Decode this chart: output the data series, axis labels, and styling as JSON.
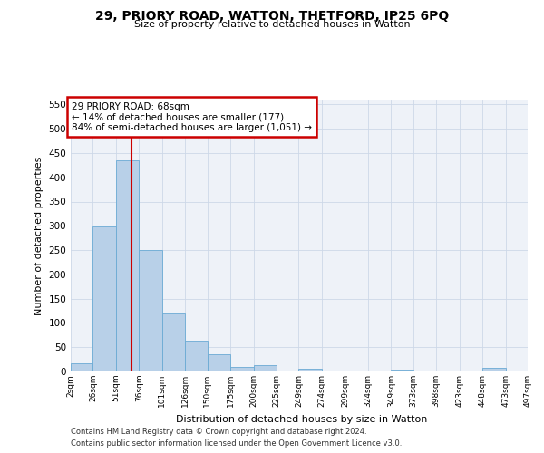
{
  "title_line1": "29, PRIORY ROAD, WATTON, THETFORD, IP25 6PQ",
  "title_line2": "Size of property relative to detached houses in Watton",
  "xlabel": "Distribution of detached houses by size in Watton",
  "ylabel": "Number of detached properties",
  "bar_color": "#b8d0e8",
  "bar_edge_color": "#6aaad4",
  "grid_color": "#cdd8e8",
  "background_color": "#eef2f8",
  "annotation_box_color": "#cc0000",
  "vline_color": "#cc0000",
  "vline_x": 68,
  "annotation_text": "29 PRIORY ROAD: 68sqm\n← 14% of detached houses are smaller (177)\n84% of semi-detached houses are larger (1,051) →",
  "footer_line1": "Contains HM Land Registry data © Crown copyright and database right 2024.",
  "footer_line2": "Contains public sector information licensed under the Open Government Licence v3.0.",
  "bin_edges": [
    2,
    26,
    51,
    76,
    101,
    126,
    150,
    175,
    200,
    225,
    249,
    274,
    299,
    324,
    349,
    373,
    398,
    423,
    448,
    473,
    497
  ],
  "bin_counts": [
    16,
    298,
    435,
    251,
    119,
    64,
    36,
    10,
    13,
    0,
    5,
    0,
    0,
    0,
    3,
    0,
    0,
    0,
    7,
    0
  ],
  "tick_labels": [
    "2sqm",
    "26sqm",
    "51sqm",
    "76sqm",
    "101sqm",
    "126sqm",
    "150sqm",
    "175sqm",
    "200sqm",
    "225sqm",
    "249sqm",
    "274sqm",
    "299sqm",
    "324sqm",
    "349sqm",
    "373sqm",
    "398sqm",
    "423sqm",
    "448sqm",
    "473sqm",
    "497sqm"
  ],
  "ylim": [
    0,
    560
  ],
  "yticks": [
    0,
    50,
    100,
    150,
    200,
    250,
    300,
    350,
    400,
    450,
    500,
    550
  ]
}
